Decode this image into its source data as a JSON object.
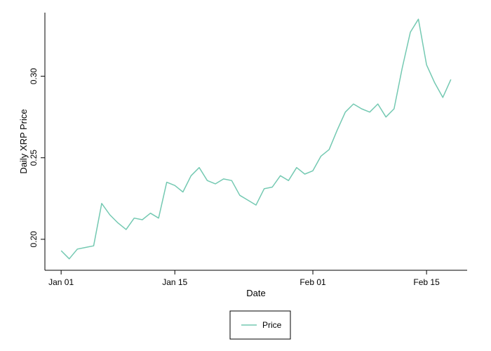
{
  "chart_data": {
    "type": "line",
    "title": "",
    "xlabel": "Date",
    "ylabel": "Daily XRP Price",
    "x_tick_labels": [
      "Jan 01",
      "Jan 15",
      "Feb 01",
      "Feb 15"
    ],
    "x_tick_dates": [
      "2018-01-01",
      "2018-01-15",
      "2018-02-01",
      "2018-02-15"
    ],
    "y_tick_labels": [
      "0.20",
      "0.25",
      "0.30"
    ],
    "y_ticks": [
      0.2,
      0.25,
      0.3
    ],
    "xlim": [
      "2017-12-30",
      "2018-02-20"
    ],
    "ylim": [
      0.181,
      0.339
    ],
    "grid": false,
    "legend_position": "bottom",
    "series": [
      {
        "name": "Price",
        "color": "#74c9b2",
        "x": [
          "2018-01-01",
          "2018-01-02",
          "2018-01-03",
          "2018-01-04",
          "2018-01-05",
          "2018-01-06",
          "2018-01-07",
          "2018-01-08",
          "2018-01-09",
          "2018-01-10",
          "2018-01-11",
          "2018-01-12",
          "2018-01-13",
          "2018-01-14",
          "2018-01-15",
          "2018-01-16",
          "2018-01-17",
          "2018-01-18",
          "2018-01-19",
          "2018-01-20",
          "2018-01-21",
          "2018-01-22",
          "2018-01-23",
          "2018-01-24",
          "2018-01-25",
          "2018-01-26",
          "2018-01-27",
          "2018-01-28",
          "2018-01-29",
          "2018-01-30",
          "2018-01-31",
          "2018-02-01",
          "2018-02-02",
          "2018-02-03",
          "2018-02-04",
          "2018-02-05",
          "2018-02-06",
          "2018-02-07",
          "2018-02-08",
          "2018-02-09",
          "2018-02-10",
          "2018-02-11",
          "2018-02-12",
          "2018-02-13",
          "2018-02-14",
          "2018-02-15",
          "2018-02-16",
          "2018-02-17",
          "2018-02-18"
        ],
        "y": [
          0.193,
          0.188,
          0.194,
          0.195,
          0.196,
          0.222,
          0.215,
          0.21,
          0.206,
          0.213,
          0.212,
          0.216,
          0.213,
          0.235,
          0.233,
          0.229,
          0.239,
          0.244,
          0.236,
          0.234,
          0.237,
          0.236,
          0.227,
          0.224,
          0.221,
          0.231,
          0.232,
          0.239,
          0.236,
          0.244,
          0.24,
          0.242,
          0.251,
          0.255,
          0.267,
          0.278,
          0.283,
          0.28,
          0.278,
          0.283,
          0.275,
          0.28,
          0.305,
          0.327,
          0.335,
          0.307,
          0.296,
          0.287,
          0.298
        ]
      }
    ]
  }
}
